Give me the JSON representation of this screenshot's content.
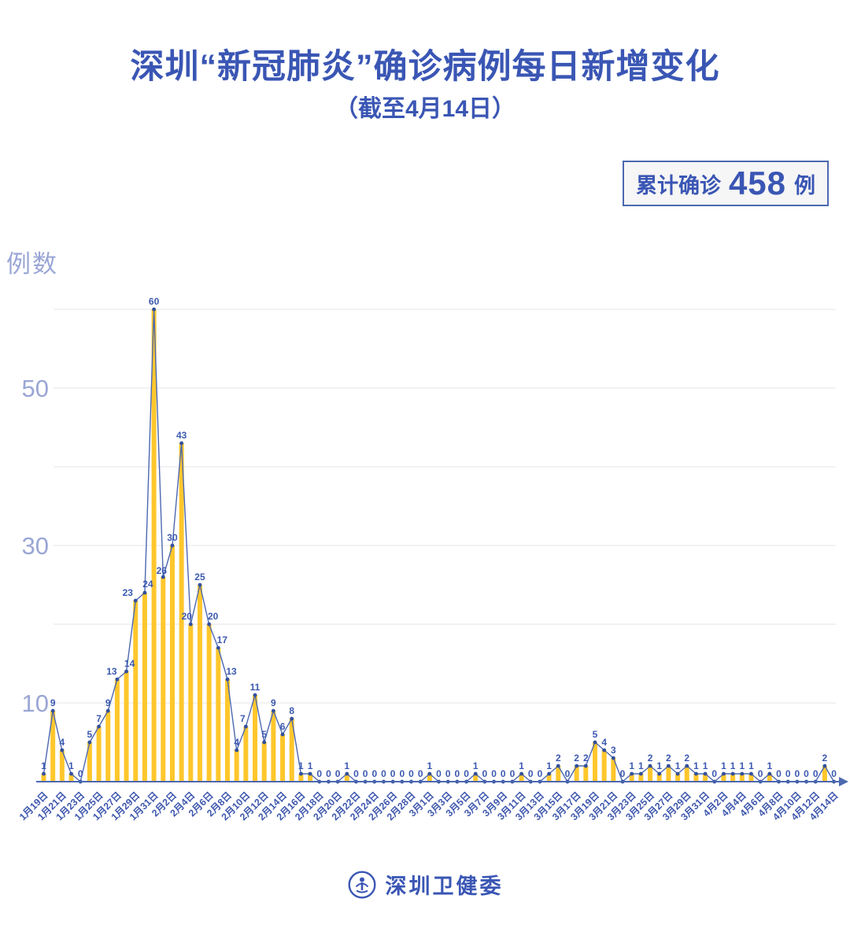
{
  "header": {
    "title": "深圳“新冠肺炎”确诊病例每日新增变化",
    "subtitle": "（截至4月14日）"
  },
  "summary_badge": {
    "prefix": "累计确诊",
    "value": "458",
    "unit": "例"
  },
  "footer": {
    "logo": "shenzhen-health-commission-logo",
    "org_name": "深圳卫健委"
  },
  "chart_data": {
    "type": "bar",
    "subtype": "bar-with-line-overlay",
    "title": "深圳“新冠肺炎”确诊病例每日新增变化",
    "subtitle": "（截至4月14日）",
    "ylabel": "例数",
    "xlabel": "",
    "ylim": [
      0,
      62
    ],
    "y_ticks_labeled": [
      10,
      30,
      50
    ],
    "grid_levels": [
      10,
      20,
      30,
      40,
      50,
      60
    ],
    "grid_on": true,
    "legend": "none",
    "n_points": 87,
    "x_tick_step": 2,
    "x_tick_labels": [
      "1月19日",
      "1月21日",
      "1月23日",
      "1月25日",
      "1月27日",
      "1月29日",
      "1月31日",
      "2月2日",
      "2月4日",
      "2月6日",
      "2月8日",
      "2月10日",
      "2月12日",
      "2月14日",
      "2月16日",
      "2月18日",
      "2月20日",
      "2月22日",
      "2月24日",
      "2月26日",
      "2月28日",
      "3月1日",
      "3月3日",
      "3月5日",
      "3月7日",
      "3月9日",
      "3月11日",
      "3月13日",
      "3月15日",
      "3月17日",
      "3月19日",
      "3月21日",
      "3月23日",
      "3月25日",
      "3月27日",
      "3月29日",
      "3月31日",
      "4月2日",
      "4月4日",
      "4月6日",
      "4月8日",
      "4月10日",
      "4月12日",
      "4月14日"
    ],
    "values": [
      1,
      9,
      4,
      1,
      0,
      5,
      7,
      9,
      13,
      14,
      23,
      24,
      60,
      26,
      30,
      43,
      20,
      25,
      20,
      17,
      13,
      4,
      7,
      11,
      5,
      9,
      6,
      8,
      1,
      1,
      0,
      0,
      0,
      1,
      0,
      0,
      0,
      0,
      0,
      0,
      0,
      0,
      1,
      0,
      0,
      0,
      0,
      1,
      0,
      0,
      0,
      0,
      1,
      0,
      0,
      1,
      2,
      0,
      2,
      2,
      5,
      4,
      3,
      0,
      1,
      1,
      2,
      1,
      2,
      1,
      2,
      1,
      1,
      0,
      1,
      1,
      1,
      1,
      0,
      1,
      0,
      0,
      0,
      0,
      0,
      2,
      0
    ],
    "total": 458,
    "colors": {
      "bar": "#ffc72c",
      "line": "#4c68b0",
      "point": "#31509e",
      "value_label": "#3c59b0",
      "axis": "#4c68b0",
      "grid": "#e9e9e9",
      "y_tick": "#9aa6d5",
      "x_tick": "#3f58ae",
      "title": "#3a56b4"
    }
  }
}
